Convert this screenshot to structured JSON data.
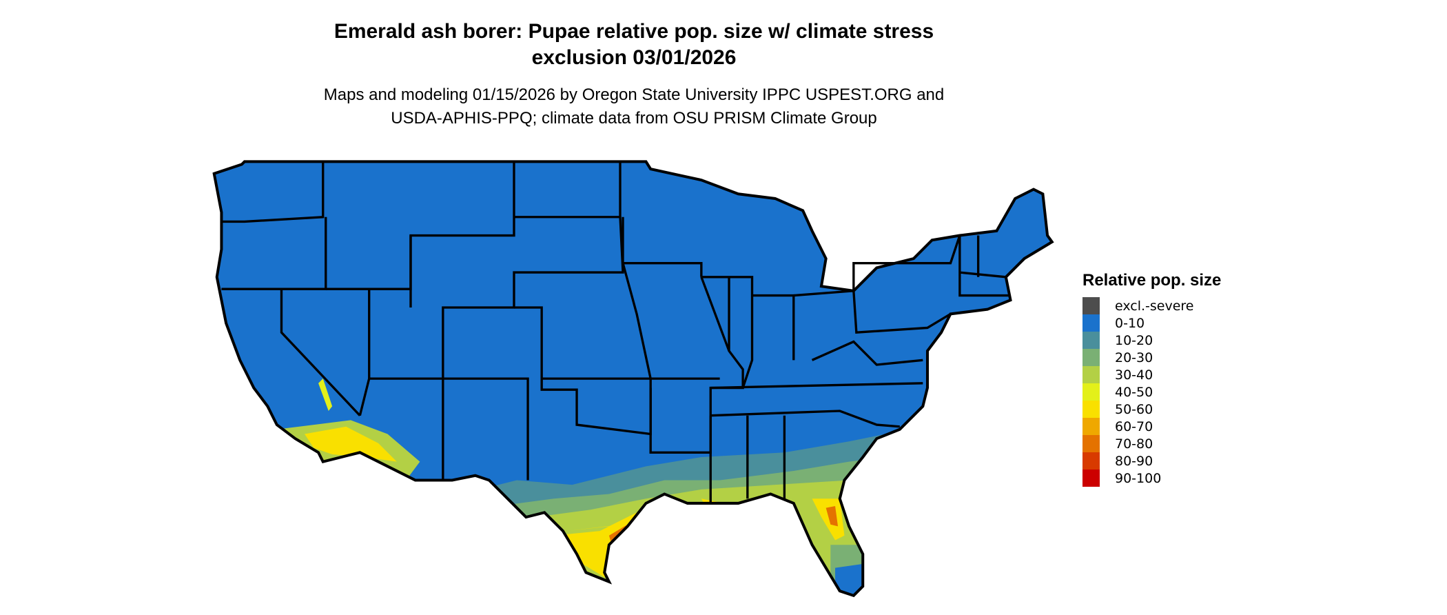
{
  "title": {
    "line1": "Emerald ash borer: Pupae relative pop. size w/ climate stress",
    "line2": "exclusion 03/01/2026"
  },
  "subtitle": {
    "line1": "Maps and modeling 01/15/2026 by Oregon State University IPPC USPEST.ORG and",
    "line2": "USDA-APHIS-PPQ; climate data from OSU PRISM Climate Group"
  },
  "legend": {
    "title": "Relative pop. size",
    "items": [
      {
        "label": "excl.-severe",
        "color": "#4d4d4d"
      },
      {
        "label": "0-10",
        "color": "#1a72cc"
      },
      {
        "label": "10-20",
        "color": "#4a8f9c"
      },
      {
        "label": "20-30",
        "color": "#7ab074"
      },
      {
        "label": "30-40",
        "color": "#b3d045"
      },
      {
        "label": "40-50",
        "color": "#e3f01a"
      },
      {
        "label": "50-60",
        "color": "#f9e000"
      },
      {
        "label": "60-70",
        "color": "#efa800"
      },
      {
        "label": "70-80",
        "color": "#e47200"
      },
      {
        "label": "80-90",
        "color": "#d83a00"
      },
      {
        "label": "90-100",
        "color": "#cc0000"
      }
    ]
  }
}
